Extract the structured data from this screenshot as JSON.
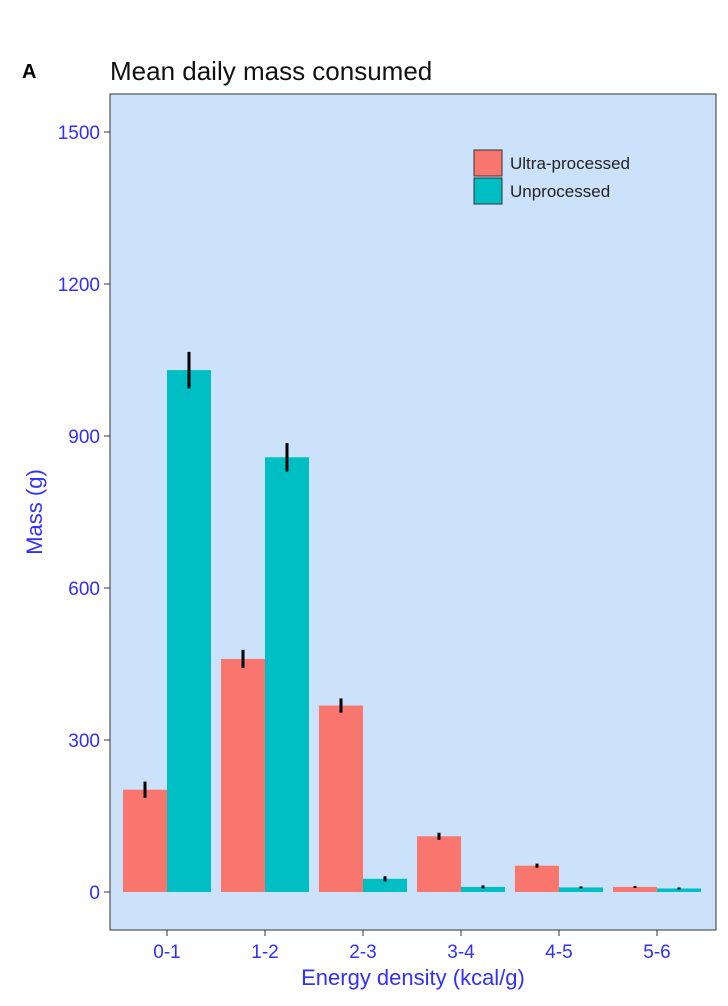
{
  "panel_label": "A",
  "chart_data": {
    "type": "bar",
    "title": "Mean daily mass consumed",
    "xlabel": "Energy density (kcal/g)",
    "ylabel": "Mass (g)",
    "ylim": [
      0,
      1500
    ],
    "yticks": [
      0,
      300,
      600,
      900,
      1200,
      1500
    ],
    "categories": [
      "0-1",
      "1-2",
      "2-3",
      "3-4",
      "4-5",
      "5-6"
    ],
    "series": [
      {
        "name": "Ultra-processed",
        "color": "#f8766d",
        "values": [
          202,
          460,
          368,
          110,
          52,
          10
        ],
        "errors": [
          16,
          18,
          14,
          7,
          4,
          2
        ]
      },
      {
        "name": "Unprocessed",
        "color": "#00bfc4",
        "values": [
          1030,
          858,
          26,
          10,
          9,
          7
        ],
        "errors": [
          36,
          28,
          5,
          3,
          2,
          2
        ]
      }
    ],
    "legend_position": "top-right",
    "grid": false,
    "background_color": "#cce1fa",
    "axis_text_color": "#3030ff"
  }
}
